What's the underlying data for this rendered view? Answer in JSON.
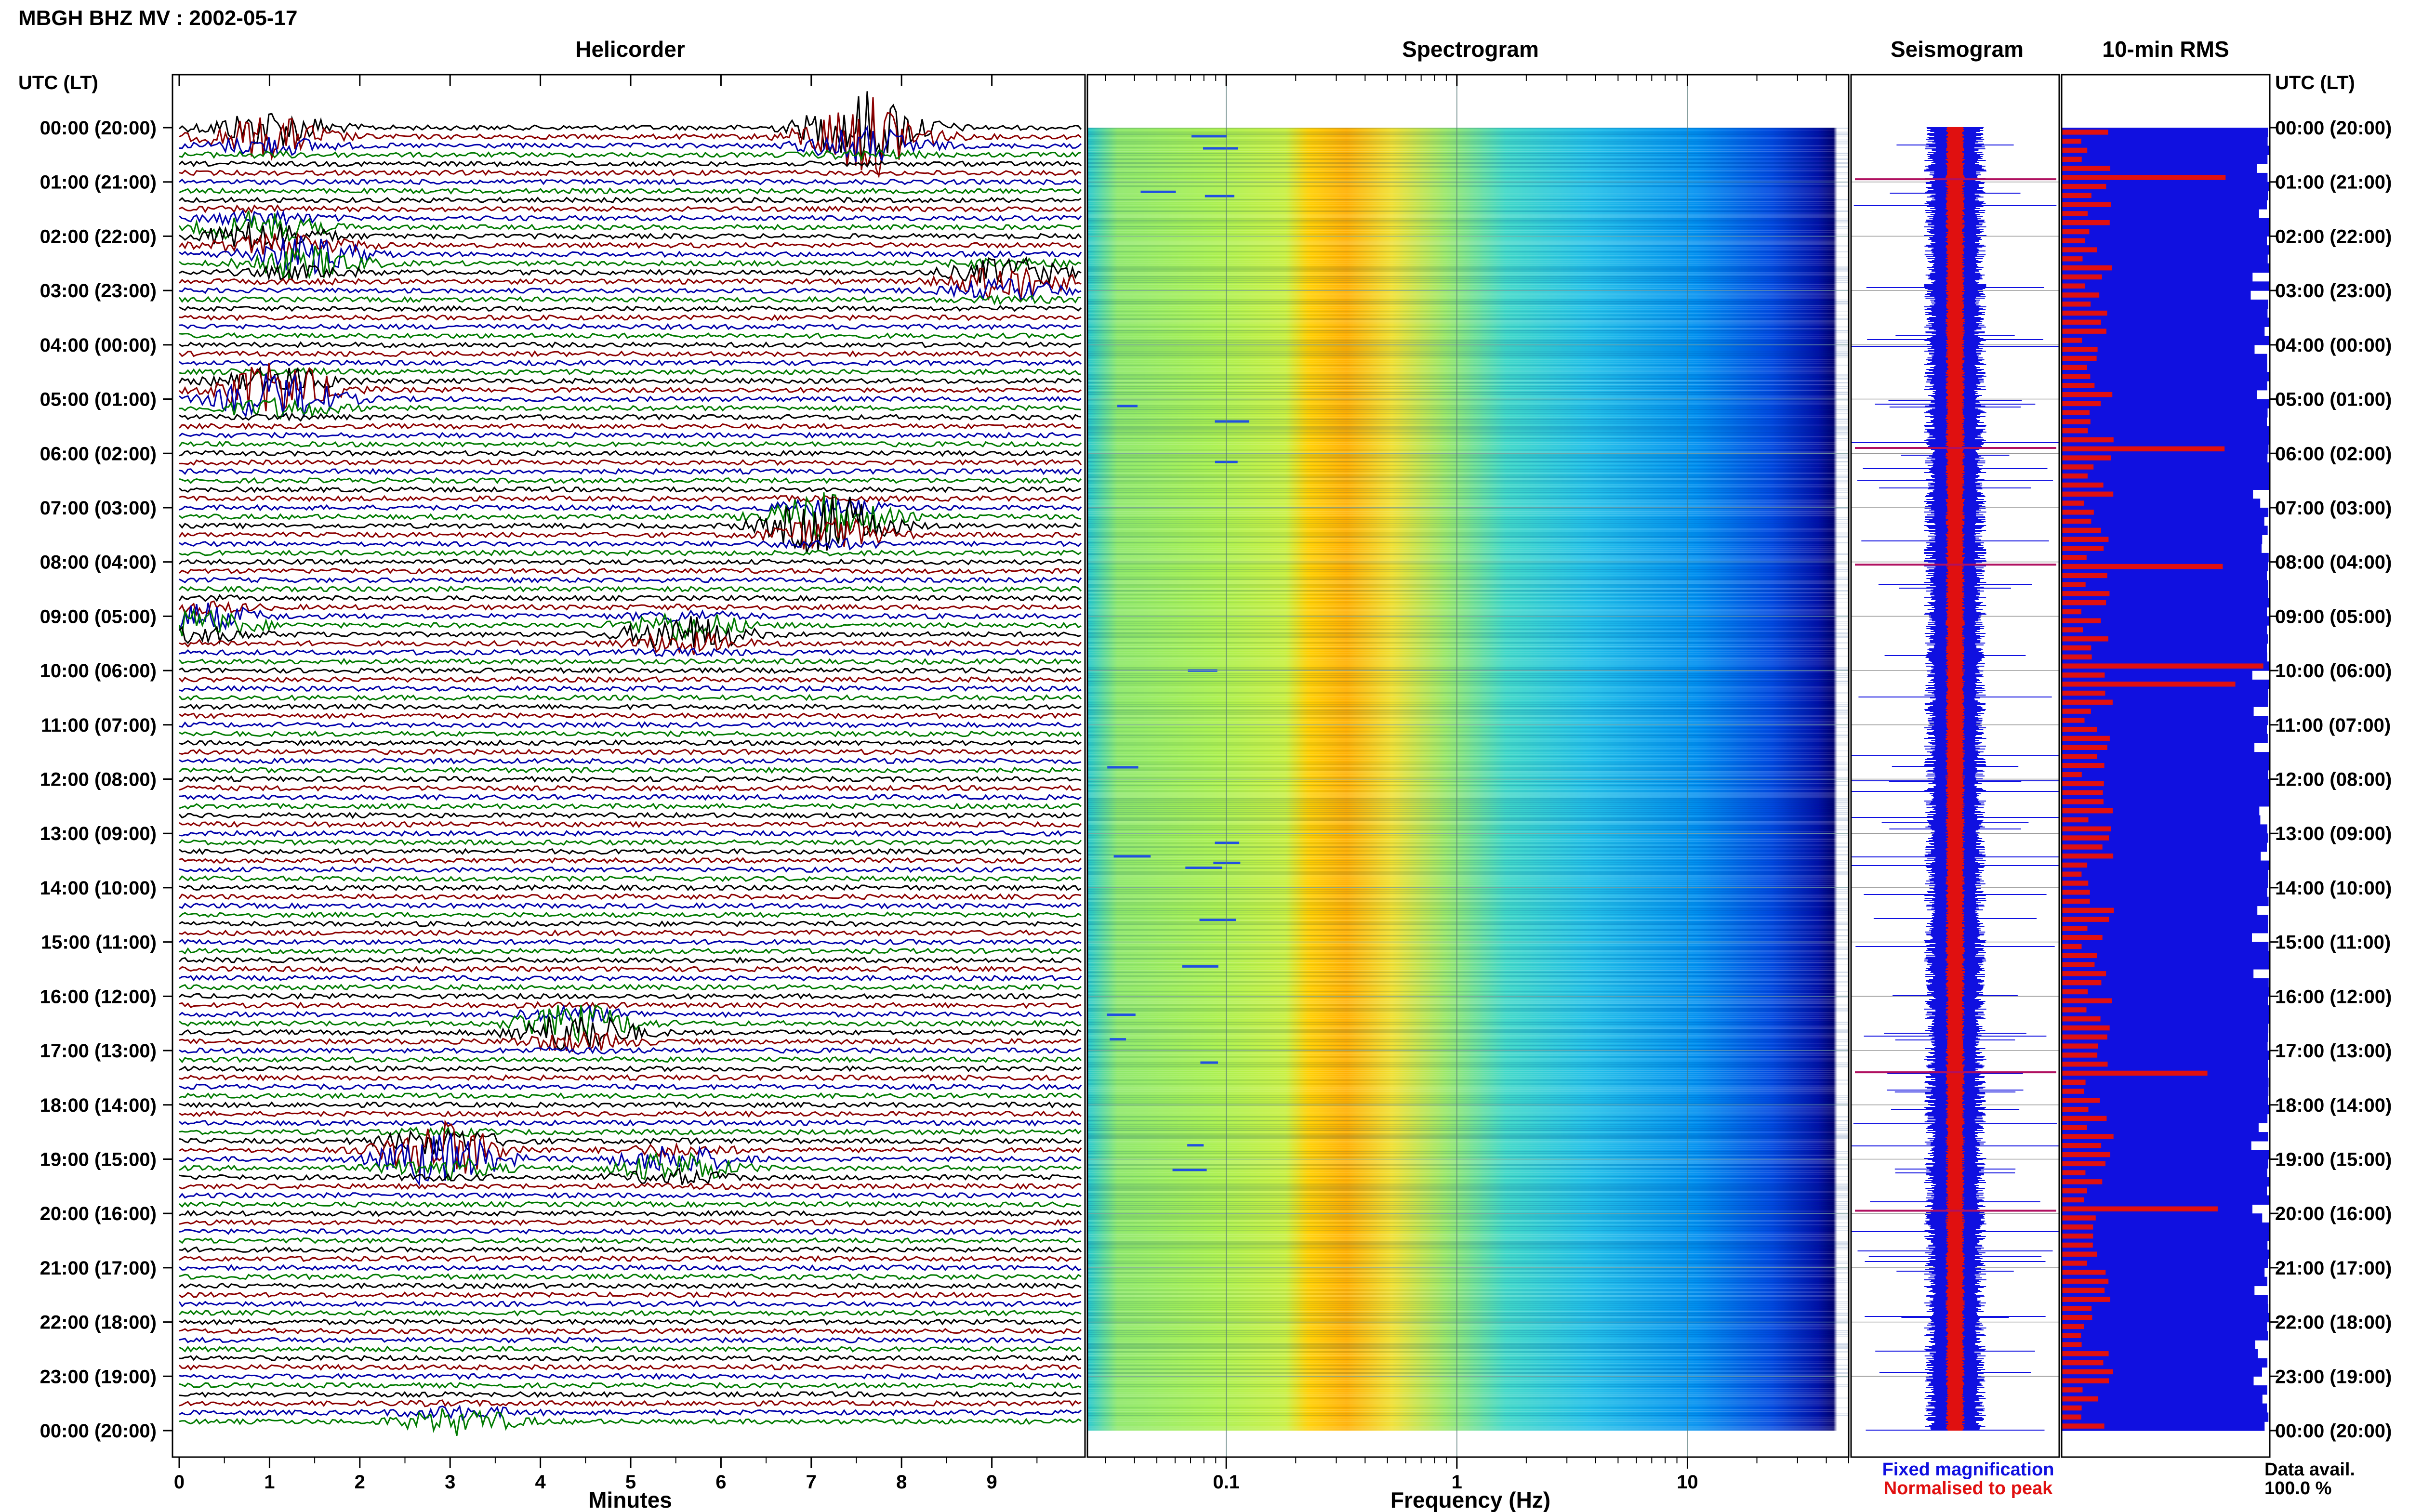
{
  "header": {
    "title": "MBGH BHZ MV : 2002-05-17"
  },
  "panels": {
    "helicorder": "Helicorder",
    "spectrogram": "Spectrogram",
    "seismogram": "Seismogram",
    "rms": "10-min RMS"
  },
  "axes": {
    "time_label": "UTC (LT)",
    "time_ticks": [
      "00:00 (20:00)",
      "01:00 (21:00)",
      "02:00 (22:00)",
      "03:00 (23:00)",
      "04:00 (00:00)",
      "05:00 (01:00)",
      "06:00 (02:00)",
      "07:00 (03:00)",
      "08:00 (04:00)",
      "09:00 (05:00)",
      "10:00 (06:00)",
      "11:00 (07:00)",
      "12:00 (08:00)",
      "13:00 (09:00)",
      "14:00 (10:00)",
      "15:00 (11:00)",
      "16:00 (12:00)",
      "17:00 (13:00)",
      "18:00 (14:00)",
      "19:00 (15:00)",
      "20:00 (16:00)",
      "21:00 (17:00)",
      "22:00 (18:00)",
      "23:00 (19:00)",
      "00:00 (20:00)"
    ],
    "minutes_label": "Minutes",
    "minutes_ticks": [
      "0",
      "1",
      "2",
      "3",
      "4",
      "5",
      "6",
      "7",
      "8",
      "9"
    ],
    "frequency_label": "Frequency (Hz)",
    "frequency_ticks": [
      "0.1",
      "1",
      "10"
    ]
  },
  "legend": {
    "fixed": "Fixed magnification",
    "normalised": "Normalised to peak",
    "fixed_color": "#1010e0",
    "normalised_color": "#e01010"
  },
  "data_avail": {
    "label": "Data avail.",
    "value": "100.0 %"
  },
  "colors": {
    "trace_cycle": [
      "#000000",
      "#8b0000",
      "#0000aa",
      "#007a00"
    ],
    "spectrogram": [
      "#00007a",
      "#0050ff",
      "#00b0ff",
      "#30e0d0",
      "#c0ff40",
      "#ffd000",
      "#ff6000",
      "#d00000"
    ]
  },
  "chart_data": {
    "type": "heatmap",
    "helicorder": {
      "x_range_minutes": [
        0,
        10
      ],
      "rows_per_hour": 6,
      "hours": 24,
      "events": [
        {
          "hour": 0.1,
          "minute": 1.0,
          "amp": 0.8
        },
        {
          "hour": 0.1,
          "minute": 7.6,
          "amp": 1.6
        },
        {
          "hour": 1.9,
          "minute": 0.9,
          "amp": 0.6
        },
        {
          "hour": 2.4,
          "minute": 1.4,
          "amp": 0.7
        },
        {
          "hour": 2.8,
          "minute": 9.2,
          "amp": 0.7
        },
        {
          "hour": 4.9,
          "minute": 1.1,
          "amp": 1.1
        },
        {
          "hour": 7.3,
          "minute": 7.2,
          "amp": 1.2
        },
        {
          "hour": 9.1,
          "minute": 0.2,
          "amp": 0.6
        },
        {
          "hour": 9.3,
          "minute": 5.6,
          "amp": 0.7
        },
        {
          "hour": 16.6,
          "minute": 4.4,
          "amp": 0.8
        },
        {
          "hour": 18.9,
          "minute": 2.9,
          "amp": 1.2
        },
        {
          "hour": 19.1,
          "minute": 5.5,
          "amp": 0.6
        },
        {
          "hour": 23.9,
          "minute": 3.1,
          "amp": 0.5
        }
      ]
    },
    "spectrogram": {
      "x_range_hz": [
        0.025,
        50
      ],
      "peak_band_hz": [
        0.2,
        0.5
      ],
      "hours": 24
    },
    "rms": {
      "interval_minutes": 10,
      "spikes_hour": [
        0.95,
        5.9,
        8.05,
        9.85,
        10.2,
        17.4,
        19.95
      ]
    }
  }
}
